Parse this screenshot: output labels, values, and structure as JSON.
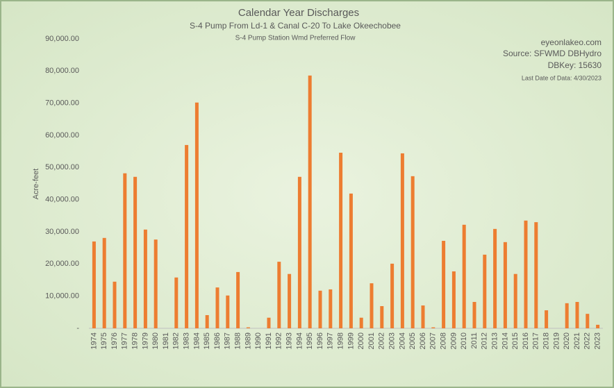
{
  "chart_data": {
    "type": "bar",
    "title": "Calendar Year Discharges",
    "subtitle": "S-4 Pump From Ld-1 & Canal C-20 To Lake Okeechobee",
    "subtitle2": "S-4 Pump Station Wmd Preferred Flow",
    "annotations": [
      "eyeonlakeo.com",
      "Source: SFWMD DBHydro",
      "DBKey: 15630",
      "Last Date of Data: 4/30/2023"
    ],
    "y_label": "Acre-feet",
    "color": "#ed7d31",
    "categories": [
      "1974",
      "1975",
      "1976",
      "1977",
      "1978",
      "1979",
      "1980",
      "1981",
      "1982",
      "1983",
      "1984",
      "1985",
      "1986",
      "1987",
      "1988",
      "1989",
      "1990",
      "1991",
      "1992",
      "1993",
      "1994",
      "1995",
      "1996",
      "1997",
      "1998",
      "1999",
      "2000",
      "2001",
      "2002",
      "2003",
      "2004",
      "2005",
      "2006",
      "2007",
      "2008",
      "2009",
      "2010",
      "2011",
      "2012",
      "2013",
      "2014",
      "2015",
      "2016",
      "2017",
      "2018",
      "2019",
      "2020",
      "2021",
      "2022",
      "2023"
    ],
    "values": [
      27000,
      28100,
      14500,
      48200,
      47100,
      30700,
      27600,
      0,
      15800,
      57000,
      70200,
      4100,
      12700,
      10200,
      17500,
      300,
      0,
      3300,
      20700,
      16900,
      47100,
      78600,
      11700,
      12100,
      54600,
      41900,
      3300,
      14000,
      6900,
      20100,
      54400,
      47300,
      7100,
      300,
      27200,
      17700,
      32200,
      8200,
      22900,
      30900,
      26800,
      16900,
      33500,
      33000,
      5600,
      0,
      7800,
      8200,
      4500,
      1100
    ],
    "ylim": [
      0,
      90000
    ],
    "yticks": [
      {
        "value": 0,
        "label": "-"
      },
      {
        "value": 10000,
        "label": "10,000.00"
      },
      {
        "value": 20000,
        "label": "20,000.00"
      },
      {
        "value": 30000,
        "label": "30,000.00"
      },
      {
        "value": 40000,
        "label": "40,000.00"
      },
      {
        "value": 50000,
        "label": "50,000.00"
      },
      {
        "value": 60000,
        "label": "60,000.00"
      },
      {
        "value": 70000,
        "label": "70,000.00"
      },
      {
        "value": 80000,
        "label": "80,000.00"
      },
      {
        "value": 90000,
        "label": "90,000.00"
      }
    ],
    "grid": false
  }
}
